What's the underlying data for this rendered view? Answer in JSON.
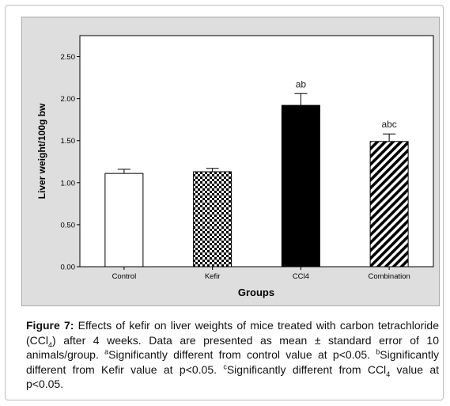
{
  "chart_data": {
    "type": "bar",
    "categories": [
      "Control",
      "Kefir",
      "CCl4",
      "Combination"
    ],
    "values": [
      1.11,
      1.13,
      1.92,
      1.49
    ],
    "errors": [
      0.05,
      0.04,
      0.14,
      0.09
    ],
    "annotations": [
      "",
      "",
      "ab",
      "abc"
    ],
    "fills": [
      "white",
      "checker",
      "black",
      "diagonal"
    ],
    "xlabel": "Groups",
    "ylabel": "Liver weight/100g bw",
    "ylim": [
      0,
      2.75
    ],
    "yticks": [
      "0.00",
      "0.50",
      "1.00",
      "1.50",
      "2.00",
      "2.50"
    ],
    "grid": false,
    "colors": {
      "panel": "#dedede",
      "plot": "#ffffff",
      "bar_dark": "#000000"
    }
  },
  "caption": {
    "label": "Figure 7:",
    "line1": " Effects of kefir on liver weights of mice treated with carbon tetrachloride (CCl",
    "sub1": "4",
    "line2": ") after 4 weeks. Data are presented as mean ± standard error of 10 animals/group. ",
    "sup_a": "a",
    "text_a": "Significantly different from control value at p<0.05. ",
    "sup_b": "b",
    "text_b": "Significantly different from Kefir value at p<0.05. ",
    "sup_c": "c",
    "text_c": "Significantly different from CCl",
    "sub2": "4",
    "text_end": " value at p<0.05."
  }
}
